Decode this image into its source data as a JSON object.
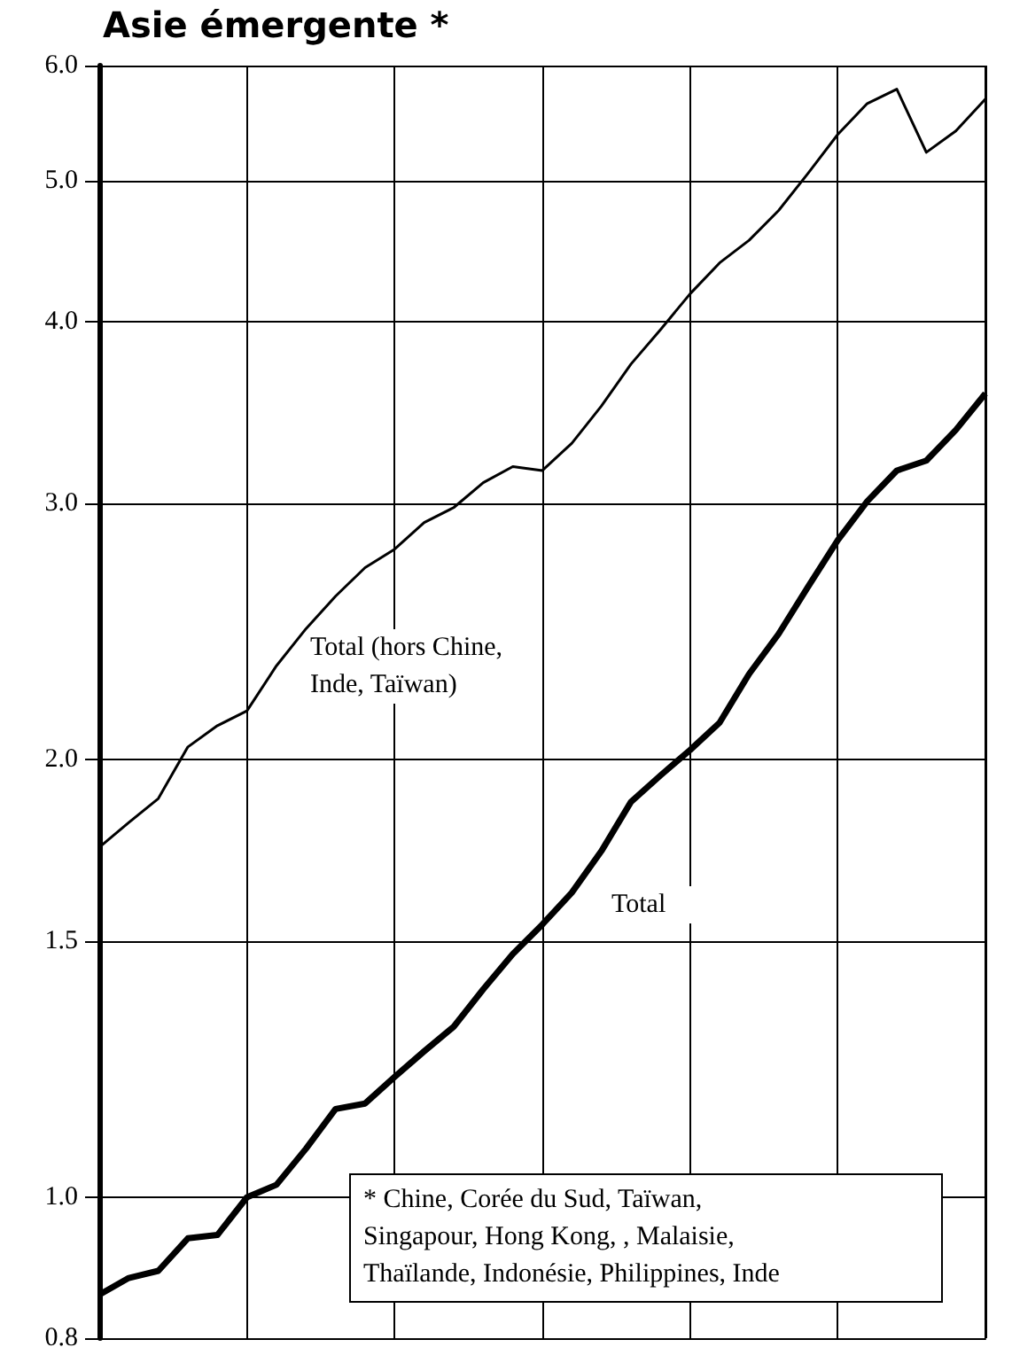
{
  "chart_data": {
    "type": "line",
    "title": "Asie émergente *",
    "categories": [
      null,
      null,
      null,
      null,
      null,
      null,
      null,
      null,
      null,
      null,
      null,
      null,
      null,
      null,
      null,
      null,
      null,
      null,
      null,
      null,
      null,
      null,
      null,
      null,
      null,
      null,
      null,
      null,
      null,
      null,
      null
    ],
    "series": [
      {
        "name": "Total",
        "color": "#000000",
        "values": [
          0.857,
          0.88,
          0.89,
          0.937,
          0.942,
          1.0,
          1.02,
          1.08,
          1.15,
          1.16,
          1.21,
          1.26,
          1.31,
          1.39,
          1.47,
          1.54,
          1.62,
          1.73,
          1.87,
          1.95,
          2.03,
          2.12,
          2.29,
          2.44,
          2.63,
          2.83,
          3.01,
          3.16,
          3.21,
          3.37,
          3.57
        ]
      },
      {
        "name": "Total (hors Chine, Inde, Taïwan)",
        "color": "#000000",
        "values": [
          1.74,
          1.81,
          1.88,
          2.04,
          2.11,
          2.16,
          2.32,
          2.46,
          2.59,
          2.71,
          2.79,
          2.91,
          2.98,
          3.1,
          3.18,
          3.16,
          3.3,
          3.5,
          3.74,
          3.95,
          4.18,
          4.39,
          4.55,
          4.77,
          5.06,
          5.38,
          5.65,
          5.78,
          5.23,
          5.41,
          5.69
        ]
      }
    ],
    "log": "y",
    "ylim": [
      0.8,
      6.0
    ],
    "yticks": [
      {
        "value": 0.8,
        "label": "0.8"
      },
      {
        "value": 1,
        "label": "1.0"
      },
      {
        "value": 1.5,
        "label": "1.5"
      },
      {
        "value": 2,
        "label": "2.0"
      },
      {
        "value": 3,
        "label": "3.0"
      },
      {
        "value": 4,
        "label": "4.0"
      },
      {
        "value": 5,
        "label": "5.0"
      },
      {
        "value": 6,
        "label": "6.0"
      }
    ],
    "tick_labels": "y",
    "grid": true,
    "legend": false,
    "marker": "none",
    "line_style": "solid",
    "annotations": [
      "* Chine, Corée du Sud, Taïwan, Singapour, Hong Kong, , Malaisie, Thaïlande, Indonésie, Philippines, Inde"
    ]
  }
}
